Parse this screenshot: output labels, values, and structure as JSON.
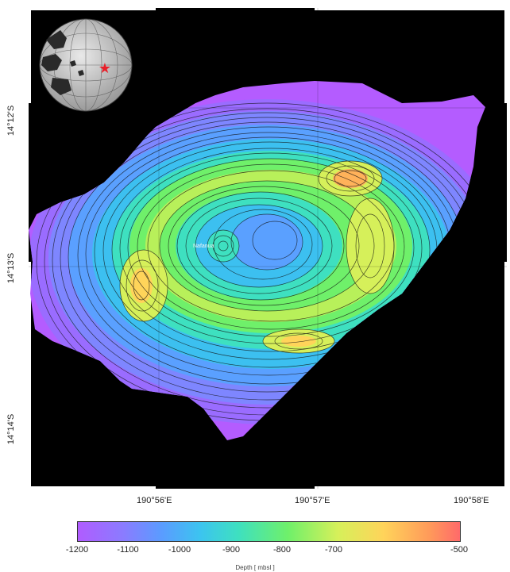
{
  "map": {
    "place_label": "Nafanua",
    "lat_ticks": [
      "14°12'S",
      "14°13'S",
      "14°14'S"
    ],
    "lon_ticks": [
      "190°56'E",
      "190°57'E",
      "190°58'E"
    ]
  },
  "inset": {
    "icon": "globe-icon",
    "marker_color": "#e8202a",
    "marker_icon": "star-icon"
  },
  "colorbar": {
    "ticks": [
      "-1200",
      "-1100",
      "-1000",
      "-900",
      "-800",
      "-700",
      "-500"
    ],
    "label": "Depth [ mbsl ]",
    "min_color": "#b05cff",
    "max_color": "#ff6a6a"
  }
}
